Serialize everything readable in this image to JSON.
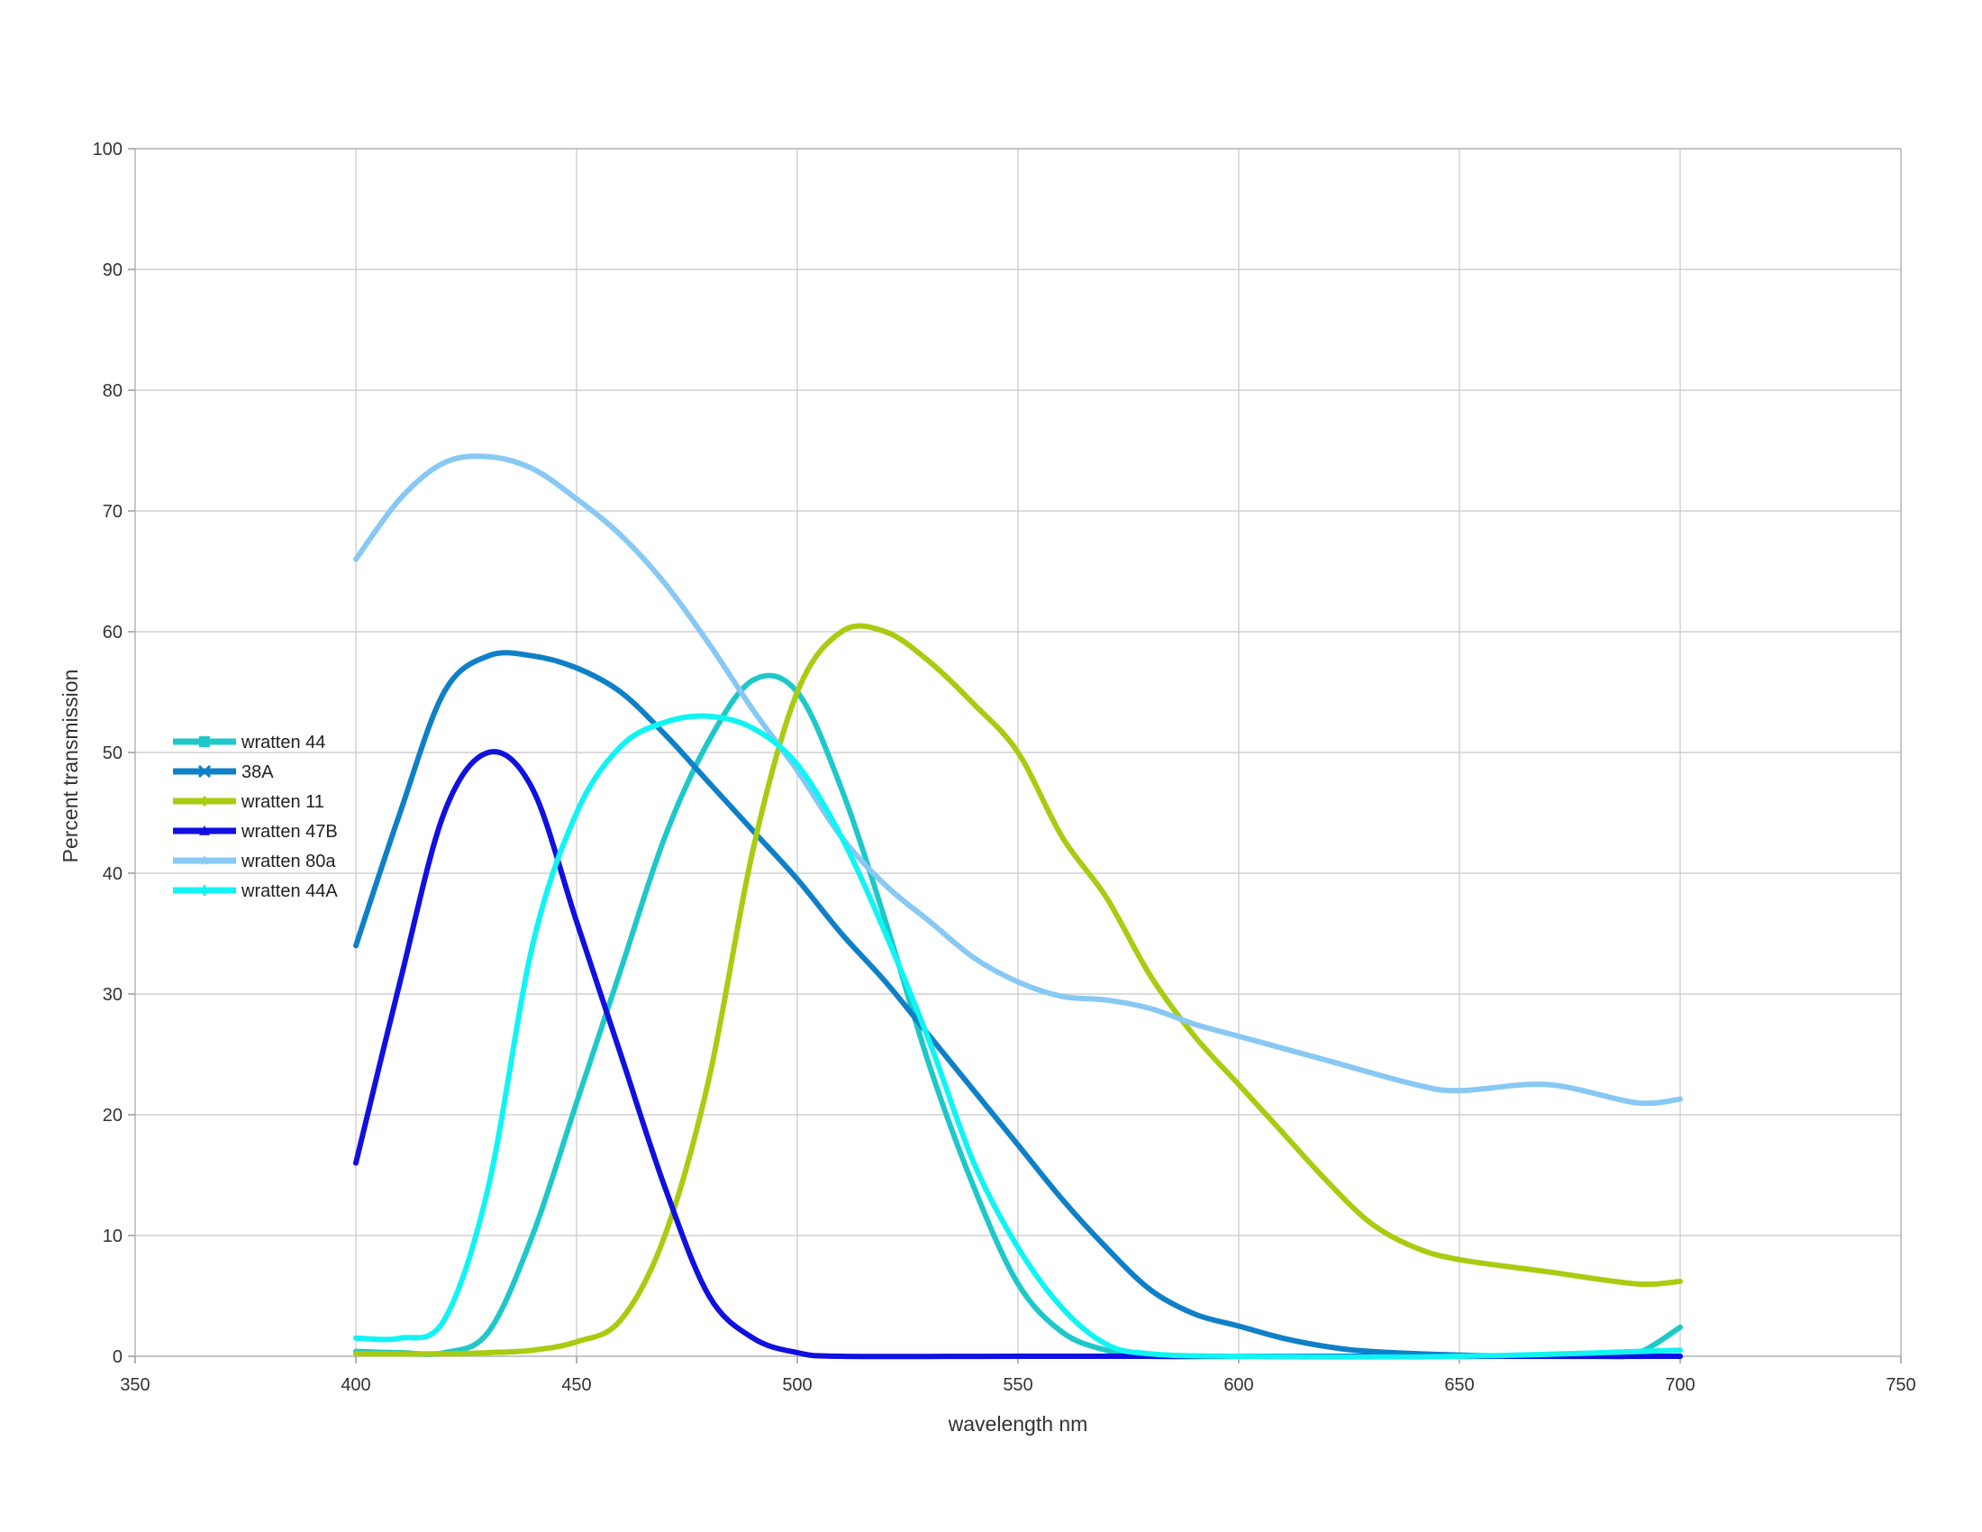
{
  "chart_data": {
    "type": "line",
    "title": "",
    "xlabel": "wavelength nm",
    "ylabel": "Percent transmission",
    "xlim": [
      350,
      750
    ],
    "ylim": [
      0,
      100
    ],
    "xticks": [
      "350",
      "400",
      "450",
      "500",
      "550",
      "600",
      "650",
      "700",
      "750"
    ],
    "yticks": [
      "0",
      "10",
      "20",
      "30",
      "40",
      "50",
      "60",
      "70",
      "80",
      "90",
      "100"
    ],
    "grid": true,
    "legend_position": "left",
    "series": [
      {
        "name": "wratten 44",
        "color": "#1ec8c8",
        "marker": "square",
        "points": [
          [
            400,
            0.4
          ],
          [
            410,
            0.3
          ],
          [
            420,
            0.3
          ],
          [
            430,
            2
          ],
          [
            440,
            10
          ],
          [
            450,
            21
          ],
          [
            460,
            32
          ],
          [
            470,
            43
          ],
          [
            480,
            51
          ],
          [
            490,
            56
          ],
          [
            500,
            55
          ],
          [
            510,
            47
          ],
          [
            520,
            36
          ],
          [
            530,
            24
          ],
          [
            540,
            14
          ],
          [
            550,
            6
          ],
          [
            560,
            2
          ],
          [
            570,
            0.5
          ],
          [
            580,
            0
          ],
          [
            600,
            0
          ],
          [
            620,
            0
          ],
          [
            640,
            0
          ],
          [
            660,
            0
          ],
          [
            680,
            0
          ],
          [
            690,
            0.2
          ],
          [
            700,
            2.4
          ]
        ]
      },
      {
        "name": " 38A",
        "color": "#0f80c8",
        "marker": "x",
        "points": [
          [
            400,
            34
          ],
          [
            410,
            45
          ],
          [
            420,
            55
          ],
          [
            430,
            58
          ],
          [
            440,
            58
          ],
          [
            450,
            57
          ],
          [
            460,
            55
          ],
          [
            470,
            51.5
          ],
          [
            480,
            47.5
          ],
          [
            490,
            43.5
          ],
          [
            500,
            39.5
          ],
          [
            510,
            35
          ],
          [
            520,
            31
          ],
          [
            530,
            26.5
          ],
          [
            540,
            22
          ],
          [
            550,
            17.5
          ],
          [
            560,
            13
          ],
          [
            570,
            9
          ],
          [
            580,
            5.5
          ],
          [
            590,
            3.5
          ],
          [
            600,
            2.5
          ],
          [
            610,
            1.5
          ],
          [
            620,
            0.8
          ],
          [
            630,
            0.4
          ],
          [
            650,
            0.1
          ],
          [
            670,
            0
          ],
          [
            700,
            0
          ]
        ]
      },
      {
        "name": "wratten 11",
        "color": "#a8cc10",
        "marker": "diamond",
        "points": [
          [
            400,
            0.2
          ],
          [
            420,
            0.2
          ],
          [
            430,
            0.3
          ],
          [
            440,
            0.5
          ],
          [
            450,
            1.2
          ],
          [
            460,
            3
          ],
          [
            470,
            10
          ],
          [
            480,
            23
          ],
          [
            490,
            42
          ],
          [
            500,
            55
          ],
          [
            510,
            60
          ],
          [
            520,
            60
          ],
          [
            530,
            57.5
          ],
          [
            540,
            54
          ],
          [
            550,
            50
          ],
          [
            560,
            43
          ],
          [
            570,
            38
          ],
          [
            580,
            31.5
          ],
          [
            590,
            26.5
          ],
          [
            600,
            22.5
          ],
          [
            610,
            18.5
          ],
          [
            620,
            14.5
          ],
          [
            630,
            11
          ],
          [
            640,
            9
          ],
          [
            650,
            8
          ],
          [
            670,
            7
          ],
          [
            690,
            6
          ],
          [
            700,
            6.2
          ]
        ]
      },
      {
        "name": "wratten 47B",
        "color": "#1010e0",
        "marker": "triangle",
        "points": [
          [
            400,
            16
          ],
          [
            410,
            31
          ],
          [
            420,
            45
          ],
          [
            430,
            50
          ],
          [
            440,
            47
          ],
          [
            450,
            36
          ],
          [
            460,
            25
          ],
          [
            470,
            14
          ],
          [
            480,
            5
          ],
          [
            490,
            1.5
          ],
          [
            500,
            0.3
          ],
          [
            510,
            0
          ],
          [
            550,
            0
          ],
          [
            600,
            0
          ],
          [
            650,
            0
          ],
          [
            700,
            0
          ]
        ]
      },
      {
        "name": "wratten 80a",
        "color": "#88c8f4",
        "marker": "star",
        "points": [
          [
            400,
            66
          ],
          [
            410,
            71
          ],
          [
            420,
            74
          ],
          [
            430,
            74.5
          ],
          [
            440,
            73.5
          ],
          [
            450,
            71
          ],
          [
            460,
            68
          ],
          [
            470,
            64
          ],
          [
            480,
            59
          ],
          [
            490,
            53.5
          ],
          [
            500,
            48.5
          ],
          [
            510,
            43
          ],
          [
            520,
            39
          ],
          [
            530,
            36
          ],
          [
            540,
            33
          ],
          [
            550,
            31
          ],
          [
            560,
            29.8
          ],
          [
            570,
            29.5
          ],
          [
            580,
            28.8
          ],
          [
            590,
            27.5
          ],
          [
            600,
            26.5
          ],
          [
            620,
            24.5
          ],
          [
            640,
            22.5
          ],
          [
            650,
            22
          ],
          [
            670,
            22.5
          ],
          [
            690,
            21
          ],
          [
            700,
            21.3
          ]
        ]
      },
      {
        "name": "wratten 44A",
        "color": "#10f4f4",
        "marker": "plus",
        "points": [
          [
            400,
            1.5
          ],
          [
            410,
            1.5
          ],
          [
            420,
            3
          ],
          [
            430,
            14
          ],
          [
            440,
            34
          ],
          [
            450,
            45
          ],
          [
            460,
            50.5
          ],
          [
            470,
            52.5
          ],
          [
            480,
            53
          ],
          [
            490,
            52
          ],
          [
            500,
            49
          ],
          [
            510,
            43
          ],
          [
            520,
            35
          ],
          [
            530,
            26
          ],
          [
            540,
            16
          ],
          [
            550,
            9
          ],
          [
            560,
            4
          ],
          [
            570,
            1
          ],
          [
            580,
            0.2
          ],
          [
            600,
            0
          ],
          [
            650,
            0
          ],
          [
            700,
            0.5
          ]
        ]
      }
    ]
  }
}
